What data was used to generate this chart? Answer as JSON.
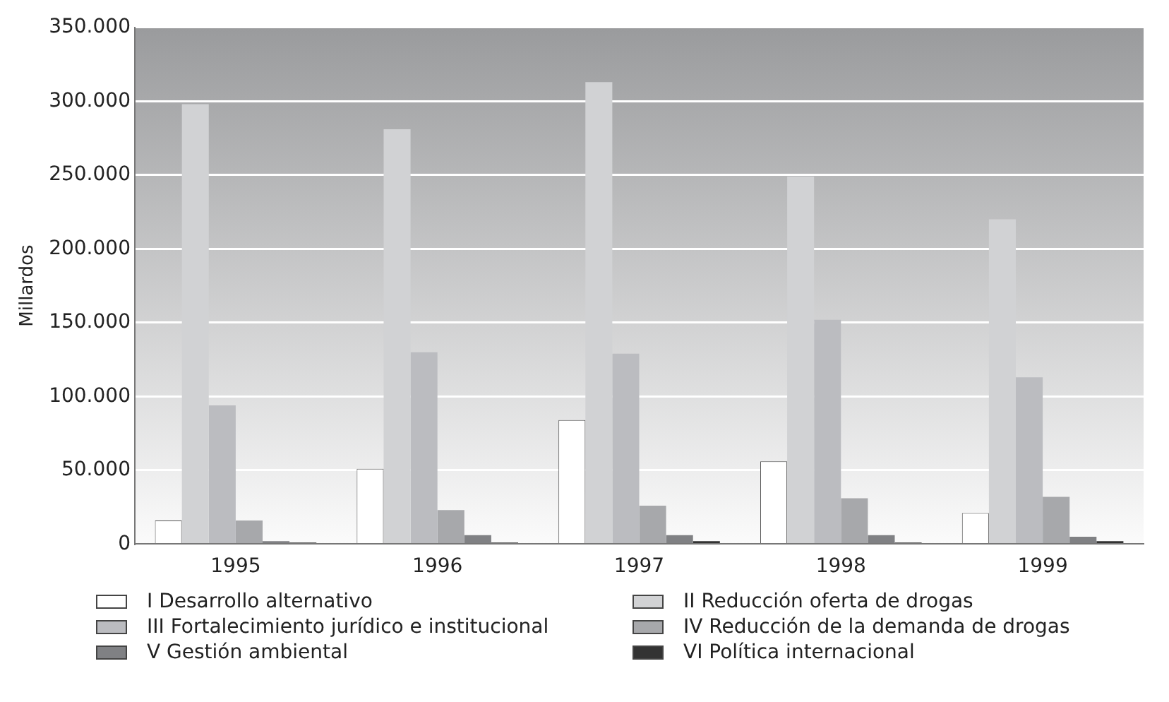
{
  "chart_data": {
    "type": "bar",
    "ylabel": "Millardos",
    "categories": [
      "1995",
      "1996",
      "1997",
      "1998",
      "1999"
    ],
    "series": [
      {
        "name": "I Desarrollo alternativo",
        "color": "#ffffff",
        "values": [
          16000,
          51000,
          84000,
          56000,
          21000
        ]
      },
      {
        "name": "II Reducción oferta de drogas",
        "color": "#d1d2d4",
        "values": [
          298000,
          281000,
          313000,
          249000,
          220000
        ]
      },
      {
        "name": "III Fortalecimiento jurídico e institucional",
        "color": "#bbbcc0",
        "values": [
          94000,
          130000,
          129000,
          152000,
          113000
        ]
      },
      {
        "name": "IV Reducción de la demanda de drogas",
        "color": "#a7a8ab",
        "values": [
          16000,
          23000,
          26000,
          31000,
          32000
        ]
      },
      {
        "name": "V Gestión ambiental",
        "color": "#808184",
        "values": [
          2000,
          6000,
          6000,
          6000,
          5000
        ]
      },
      {
        "name": "VI Política internacional",
        "color": "#333333",
        "values": [
          1000,
          1000,
          2000,
          1000,
          2000
        ]
      }
    ],
    "ylim": [
      0,
      350000
    ],
    "yticks": [
      0,
      {
        "value": 50000,
        "label": "50.000"
      },
      {
        "value": 100000,
        "label": "100.000"
      },
      {
        "value": 150000,
        "label": "150.000"
      },
      {
        "value": 200000,
        "label": "200.000"
      },
      {
        "value": 250000,
        "label": "250.000"
      },
      {
        "value": 300000,
        "label": "300.000"
      },
      {
        "value": 350000,
        "label": "350.000"
      }
    ],
    "grid": "y",
    "legend": "bottom"
  }
}
